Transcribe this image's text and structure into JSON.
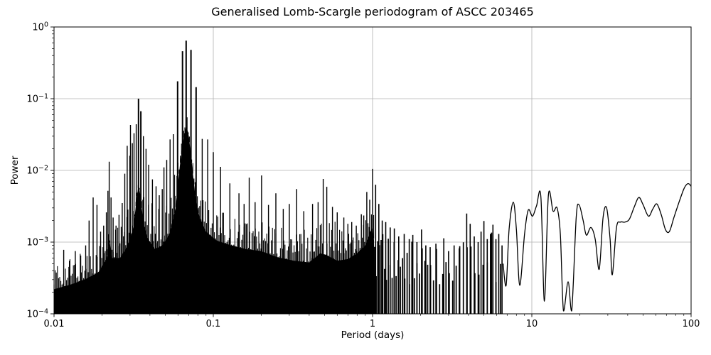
{
  "chart_data": {
    "type": "line",
    "title": "Generalised Lomb-Scargle periodogram of ASCC 203465",
    "xlabel": "Period (days)",
    "ylabel": "Power",
    "xscale": "log",
    "yscale": "log",
    "xlim": [
      0.01,
      100
    ],
    "ylim": [
      0.0001,
      1
    ],
    "grid": true,
    "legend": false,
    "line_color": "#000000",
    "grid_color": "#b0b0b0",
    "x_ticks": [
      {
        "value": 0.01,
        "label": "0.01"
      },
      {
        "value": 0.1,
        "label": "0.1"
      },
      {
        "value": 1,
        "label": "1"
      },
      {
        "value": 10,
        "label": "10"
      },
      {
        "value": 100,
        "label": "100"
      }
    ],
    "y_ticks": [
      {
        "value": 1,
        "label_base": "10",
        "label_exp": "0"
      },
      {
        "value": 0.1,
        "label_base": "10",
        "label_exp": "−1"
      },
      {
        "value": 0.01,
        "label_base": "10",
        "label_exp": "−2"
      },
      {
        "value": 0.001,
        "label_base": "10",
        "label_exp": "−3"
      },
      {
        "value": 0.0001,
        "label_base": "10",
        "label_exp": "−4"
      }
    ],
    "main_peak": {
      "period_days": 0.0675,
      "power": 0.645
    },
    "zones": {
      "dense_solid_start": 0.01,
      "dense_solid_end": 1.03,
      "spike_zone_end": 6.8,
      "smooth_tail_start": 6.6
    },
    "peaks": [
      [
        0.0115,
        0.00078
      ],
      [
        0.0125,
        0.00055
      ],
      [
        0.0136,
        0.00075
      ],
      [
        0.0147,
        0.00065
      ],
      [
        0.0158,
        0.0009
      ],
      [
        0.0166,
        0.002
      ],
      [
        0.0176,
        0.0042
      ],
      [
        0.0186,
        0.0033
      ],
      [
        0.0196,
        0.0014
      ],
      [
        0.0205,
        0.0017
      ],
      [
        0.0213,
        0.0026
      ],
      [
        0.0218,
        0.0052
      ],
      [
        0.0222,
        0.0132
      ],
      [
        0.0228,
        0.0042
      ],
      [
        0.0235,
        0.0022
      ],
      [
        0.0245,
        0.0017
      ],
      [
        0.0256,
        0.0024
      ],
      [
        0.0268,
        0.0035
      ],
      [
        0.0278,
        0.009
      ],
      [
        0.0288,
        0.022
      ],
      [
        0.0299,
        0.016
      ],
      [
        0.0302,
        0.043
      ],
      [
        0.031,
        0.024
      ],
      [
        0.0318,
        0.033
      ],
      [
        0.0328,
        0.044
      ],
      [
        0.0339,
        0.1
      ],
      [
        0.0351,
        0.067
      ],
      [
        0.0364,
        0.03
      ],
      [
        0.0378,
        0.02
      ],
      [
        0.0393,
        0.012
      ],
      [
        0.0415,
        0.0075
      ],
      [
        0.0437,
        0.006
      ],
      [
        0.0458,
        0.0045
      ],
      [
        0.0478,
        0.0055
      ],
      [
        0.049,
        0.011
      ],
      [
        0.051,
        0.014
      ],
      [
        0.0535,
        0.027
      ],
      [
        0.0562,
        0.032
      ],
      [
        0.0597,
        0.175
      ],
      [
        0.0641,
        0.46
      ],
      [
        0.0675,
        0.645
      ],
      [
        0.0724,
        0.48
      ],
      [
        0.078,
        0.145
      ],
      [
        0.0852,
        0.0275
      ],
      [
        0.0922,
        0.027
      ],
      [
        0.1,
        0.018
      ],
      [
        0.111,
        0.0112
      ],
      [
        0.127,
        0.0066
      ],
      [
        0.145,
        0.0048
      ],
      [
        0.156,
        0.0034
      ],
      [
        0.168,
        0.0079
      ],
      [
        0.183,
        0.0036
      ],
      [
        0.201,
        0.0085
      ],
      [
        0.222,
        0.0033
      ],
      [
        0.247,
        0.0048
      ],
      [
        0.275,
        0.0029
      ],
      [
        0.3,
        0.0034
      ],
      [
        0.334,
        0.0055
      ],
      [
        0.37,
        0.0027
      ],
      [
        0.42,
        0.0034
      ],
      [
        0.455,
        0.0036
      ],
      [
        0.49,
        0.0076
      ],
      [
        0.516,
        0.0059
      ],
      [
        0.56,
        0.0031
      ],
      [
        0.6,
        0.0026
      ],
      [
        0.66,
        0.0022
      ],
      [
        0.7,
        0.0018
      ],
      [
        0.74,
        0.0019
      ],
      [
        0.79,
        0.0017
      ],
      [
        0.85,
        0.00245
      ],
      [
        0.88,
        0.00235
      ],
      [
        0.92,
        0.005
      ],
      [
        0.96,
        0.0039
      ],
      [
        1.0,
        0.0105
      ],
      [
        1.045,
        0.0063
      ],
      [
        1.095,
        0.0034
      ],
      [
        1.15,
        0.002
      ],
      [
        1.21,
        0.0019
      ],
      [
        1.29,
        0.0016
      ],
      [
        1.37,
        0.00155
      ],
      [
        1.46,
        0.0012
      ],
      [
        1.58,
        0.0013
      ],
      [
        1.7,
        0.0011
      ],
      [
        1.79,
        0.00126
      ],
      [
        1.9,
        0.001
      ],
      [
        2.03,
        0.0015
      ],
      [
        2.16,
        0.0009
      ],
      [
        2.3,
        0.00085
      ],
      [
        2.5,
        0.00095
      ],
      [
        2.8,
        0.00113
      ],
      [
        3.0,
        0.00075
      ],
      [
        3.25,
        0.0009
      ],
      [
        3.5,
        0.00082
      ],
      [
        3.9,
        0.0025
      ],
      [
        4.1,
        0.0018
      ],
      [
        4.35,
        0.0012
      ],
      [
        4.6,
        0.001
      ],
      [
        4.8,
        0.0014
      ],
      [
        5.0,
        0.00197
      ],
      [
        5.25,
        0.0011
      ],
      [
        5.5,
        0.0013
      ],
      [
        5.7,
        0.00175
      ],
      [
        5.95,
        0.0011
      ],
      [
        6.2,
        0.0013
      ],
      [
        6.5,
        0.0009
      ]
    ],
    "base_envelope": [
      [
        0.01,
        0.00022
      ],
      [
        0.013,
        0.00026
      ],
      [
        0.016,
        0.00031
      ],
      [
        0.019,
        0.00038
      ],
      [
        0.0215,
        0.0006
      ],
      [
        0.0223,
        0.0011
      ],
      [
        0.023,
        0.0006
      ],
      [
        0.026,
        0.0006
      ],
      [
        0.029,
        0.0009
      ],
      [
        0.0315,
        0.0016
      ],
      [
        0.0332,
        0.0045
      ],
      [
        0.034,
        0.0065
      ],
      [
        0.0348,
        0.0045
      ],
      [
        0.0365,
        0.0018
      ],
      [
        0.039,
        0.0011
      ],
      [
        0.043,
        0.0008
      ],
      [
        0.048,
        0.0009
      ],
      [
        0.053,
        0.0013
      ],
      [
        0.058,
        0.003
      ],
      [
        0.062,
        0.013
      ],
      [
        0.0655,
        0.032
      ],
      [
        0.0677,
        0.042
      ],
      [
        0.07,
        0.032
      ],
      [
        0.0735,
        0.012
      ],
      [
        0.077,
        0.0045
      ],
      [
        0.082,
        0.0022
      ],
      [
        0.09,
        0.0014
      ],
      [
        0.105,
        0.00105
      ],
      [
        0.13,
        0.0009
      ],
      [
        0.16,
        0.0008
      ],
      [
        0.2,
        0.00075
      ],
      [
        0.25,
        0.00062
      ],
      [
        0.32,
        0.00055
      ],
      [
        0.4,
        0.00052
      ],
      [
        0.47,
        0.0007
      ],
      [
        0.52,
        0.00065
      ],
      [
        0.6,
        0.00055
      ],
      [
        0.7,
        0.00058
      ],
      [
        0.8,
        0.0007
      ],
      [
        0.9,
        0.0009
      ],
      [
        0.97,
        0.0014
      ],
      [
        1.0,
        0.0016
      ],
      [
        1.03,
        0.0009
      ]
    ],
    "noise_top_envelope": [
      [
        0.01,
        0.0005
      ],
      [
        0.014,
        0.0007
      ],
      [
        0.02,
        0.0012
      ],
      [
        0.027,
        0.0022
      ],
      [
        0.032,
        0.004
      ],
      [
        0.035,
        0.005
      ],
      [
        0.04,
        0.0035
      ],
      [
        0.048,
        0.004
      ],
      [
        0.055,
        0.008
      ],
      [
        0.062,
        0.03
      ],
      [
        0.0677,
        0.08
      ],
      [
        0.073,
        0.03
      ],
      [
        0.08,
        0.008
      ],
      [
        0.09,
        0.004
      ],
      [
        0.105,
        0.003
      ],
      [
        0.13,
        0.0022
      ],
      [
        0.17,
        0.0022
      ],
      [
        0.22,
        0.0018
      ],
      [
        0.3,
        0.0016
      ],
      [
        0.4,
        0.0018
      ],
      [
        0.5,
        0.0026
      ],
      [
        0.65,
        0.0017
      ],
      [
        0.8,
        0.0018
      ],
      [
        0.95,
        0.0032
      ],
      [
        1.05,
        0.0026
      ],
      [
        1.3,
        0.0013
      ],
      [
        1.7,
        0.0011
      ],
      [
        2.2,
        0.00085
      ],
      [
        2.9,
        0.0009
      ],
      [
        3.6,
        0.0009
      ],
      [
        4.2,
        0.0015
      ],
      [
        5.0,
        0.0015
      ],
      [
        6.0,
        0.0013
      ],
      [
        6.8,
        0.0009
      ]
    ],
    "smooth_tail": [
      [
        6.6,
        0.0005
      ],
      [
        6.9,
        0.00025
      ],
      [
        7.2,
        0.0015
      ],
      [
        7.65,
        0.0036
      ],
      [
        8.0,
        0.0015
      ],
      [
        8.4,
        0.00025
      ],
      [
        9.0,
        0.0013
      ],
      [
        9.5,
        0.0028
      ],
      [
        10.1,
        0.0023
      ],
      [
        10.7,
        0.0032
      ],
      [
        11.4,
        0.0043
      ],
      [
        12.0,
        0.00015
      ],
      [
        12.7,
        0.0045
      ],
      [
        13.6,
        0.0027
      ],
      [
        14.4,
        0.003
      ],
      [
        15.1,
        0.0013
      ],
      [
        15.8,
        0.00011
      ],
      [
        16.9,
        0.00028
      ],
      [
        17.8,
        0.00011
      ],
      [
        19.0,
        0.0022
      ],
      [
        19.8,
        0.0033
      ],
      [
        21.0,
        0.002
      ],
      [
        22.0,
        0.00125
      ],
      [
        23.5,
        0.0016
      ],
      [
        25.0,
        0.0011
      ],
      [
        26.5,
        0.00042
      ],
      [
        28.0,
        0.0022
      ],
      [
        29.5,
        0.003
      ],
      [
        31.0,
        0.0011
      ],
      [
        32.0,
        0.00035
      ],
      [
        34.0,
        0.0016
      ],
      [
        36.0,
        0.0019
      ],
      [
        38.5,
        0.0019
      ],
      [
        41.0,
        0.0021
      ],
      [
        44.0,
        0.0031
      ],
      [
        47.0,
        0.0042
      ],
      [
        50.0,
        0.0033
      ],
      [
        54.0,
        0.0023
      ],
      [
        57.5,
        0.0029
      ],
      [
        61.0,
        0.0034
      ],
      [
        65.0,
        0.0024
      ],
      [
        69.0,
        0.0015
      ],
      [
        73.0,
        0.0014
      ],
      [
        78.0,
        0.0022
      ],
      [
        84.0,
        0.0036
      ],
      [
        90.0,
        0.0055
      ],
      [
        94.0,
        0.0064
      ],
      [
        97.0,
        0.0065
      ],
      [
        100.0,
        0.006
      ]
    ]
  }
}
